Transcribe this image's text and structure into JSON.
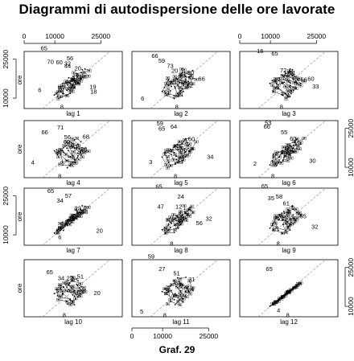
{
  "figure": {
    "title": "Diagrammi di autodispersione delle ore lavorate",
    "caption": "Graf. 29"
  },
  "chart_data": {
    "type": "scatter",
    "title": "Diagrammi di autodispersione delle ore lavorate",
    "ylabel": "ore",
    "x_ticks": [
      "0",
      "10000",
      "25000"
    ],
    "y_ticks": [
      "10000",
      "25000"
    ],
    "xlim": [
      0,
      32000
    ],
    "ylim": [
      6000,
      28000
    ],
    "panels": [
      {
        "xlabel": "lag 1",
        "point_labels": [
          "65",
          "70",
          "60",
          "56",
          "44",
          "32",
          "20",
          "6",
          "19",
          "18",
          "1",
          "8"
        ]
      },
      {
        "xlabel": "lag 2",
        "point_labels": [
          "66",
          "59",
          "73",
          "20",
          "36",
          "30",
          "32",
          "66",
          "6",
          "1",
          "8"
        ]
      },
      {
        "xlabel": "lag 3",
        "point_labels": [
          "16",
          "65",
          "72",
          "17",
          "51",
          "66",
          "60",
          "33",
          "8"
        ]
      },
      {
        "xlabel": "lag 4",
        "point_labels": [
          "66",
          "71",
          "60",
          "56",
          "68",
          "20",
          "4",
          "8"
        ]
      },
      {
        "xlabel": "lag 5",
        "point_labels": [
          "65",
          "59",
          "64",
          "27",
          "60",
          "3",
          "34",
          "8"
        ]
      },
      {
        "xlabel": "lag 6",
        "point_labels": [
          "66",
          "53",
          "55",
          "60",
          "2",
          "30",
          "8"
        ]
      },
      {
        "xlabel": "lag 7",
        "point_labels": [
          "65",
          "34",
          "57",
          "23",
          "58",
          "1",
          "20",
          "6"
        ]
      },
      {
        "xlabel": "lag 8",
        "point_labels": [
          "65",
          "47",
          "24",
          "12",
          "56",
          "32",
          "8"
        ]
      },
      {
        "xlabel": "lag 9",
        "point_labels": [
          "65",
          "35",
          "58",
          "61",
          "55",
          "32",
          "8"
        ]
      },
      {
        "xlabel": "lag 10",
        "point_labels": [
          "65",
          "34",
          "22",
          "51",
          "53",
          "20",
          "8"
        ]
      },
      {
        "xlabel": "lag 11",
        "point_labels": [
          "59",
          "27",
          "51",
          "31",
          "5",
          "8"
        ]
      },
      {
        "xlabel": "lag 12",
        "point_labels": [
          "65",
          "4",
          "8"
        ]
      }
    ]
  }
}
